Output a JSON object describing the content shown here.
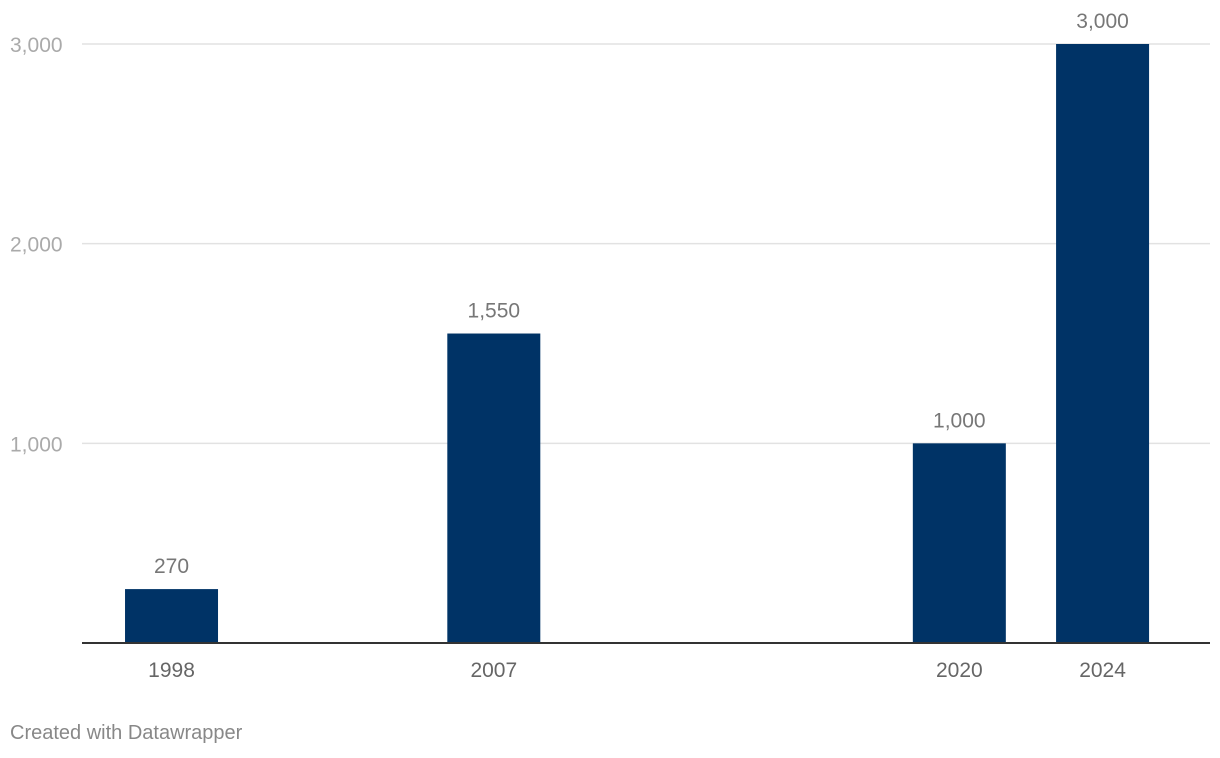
{
  "chart_data": {
    "type": "bar",
    "x": [
      1998,
      2007,
      2020,
      2024
    ],
    "categories": [
      "1998",
      "2007",
      "2020",
      "2024"
    ],
    "values": [
      270,
      1550,
      1000,
      3000
    ],
    "value_labels": [
      "270",
      "1,550",
      "1,000",
      "3,000"
    ],
    "y_ticks": [
      1000,
      2000,
      3000
    ],
    "y_tick_labels": [
      "1,000",
      "2,000",
      "3,000"
    ],
    "ylim": [
      0,
      3000
    ],
    "xlim": [
      1995.5,
      2027
    ],
    "grid": true,
    "title": "",
    "xlabel": "",
    "ylabel": ""
  },
  "colors": {
    "bar": "#003366",
    "grid": "#e2e2e2",
    "axis": "#333333",
    "tick_label": "#aaaaaa",
    "value_label": "#777777",
    "x_label": "#666666"
  },
  "footer": {
    "credit": "Created with Datawrapper"
  }
}
